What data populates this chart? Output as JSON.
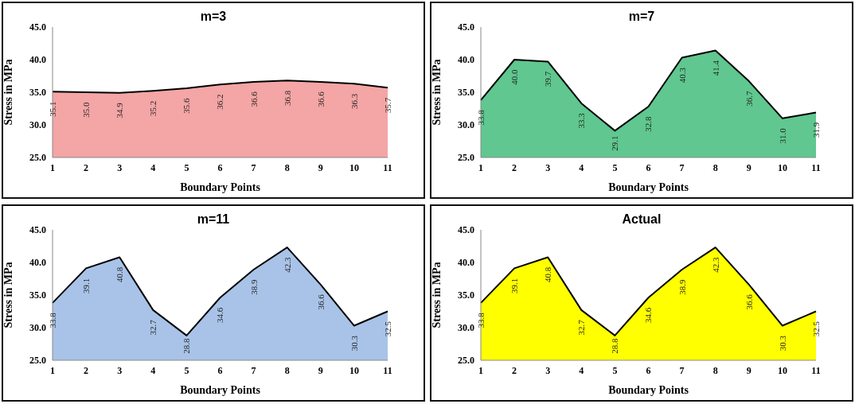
{
  "chart_data": [
    {
      "type": "area",
      "title": "m=3",
      "xlabel": "Boundary Points",
      "ylabel": "Stress  in  MPa",
      "categories": [
        "1",
        "2",
        "3",
        "4",
        "5",
        "6",
        "7",
        "8",
        "9",
        "10",
        "11"
      ],
      "ylim": [
        25,
        45
      ],
      "yticks": [
        {
          "value": 25,
          "label": "25.0"
        },
        {
          "value": 30,
          "label": "30.0"
        },
        {
          "value": 35,
          "label": "35.0"
        },
        {
          "value": 40,
          "label": "40.0"
        },
        {
          "value": 45,
          "label": "45.0"
        }
      ],
      "grid": false,
      "series": [
        {
          "color": "#f4a5a5",
          "values": [
            35.1,
            35.0,
            34.9,
            35.2,
            35.6,
            36.2,
            36.6,
            36.8,
            36.6,
            36.3,
            35.7
          ],
          "value_labels": [
            "35.1",
            "35.0",
            "34.9",
            "35.2",
            "35.6",
            "36.2",
            "36.6",
            "36.8",
            "36.6",
            "36.3",
            "35.7"
          ]
        }
      ]
    },
    {
      "type": "area",
      "title": "m=7",
      "xlabel": "Boundary Points",
      "ylabel": "Stress  in  MPa",
      "categories": [
        "1",
        "2",
        "3",
        "4",
        "5",
        "6",
        "7",
        "8",
        "9",
        "10",
        "11"
      ],
      "ylim": [
        25,
        45
      ],
      "yticks": [
        {
          "value": 25,
          "label": "25.0"
        },
        {
          "value": 30,
          "label": "30.0"
        },
        {
          "value": 35,
          "label": "35.0"
        },
        {
          "value": 40,
          "label": "40.0"
        },
        {
          "value": 45,
          "label": "45.0"
        }
      ],
      "grid": false,
      "series": [
        {
          "color": "#5fc78f",
          "values": [
            33.8,
            40.0,
            39.7,
            33.3,
            29.1,
            32.8,
            40.3,
            41.4,
            36.7,
            31.0,
            31.9
          ],
          "value_labels": [
            "33.8",
            "40.0",
            "39.7",
            "33.3",
            "29.1",
            "32.8",
            "40.3",
            "41.4",
            "36.7",
            "31.0",
            "31.9"
          ]
        }
      ]
    },
    {
      "type": "area",
      "title": "m=11",
      "xlabel": "Boundary Points",
      "ylabel": "Stress  in  MPa",
      "categories": [
        "1",
        "2",
        "3",
        "4",
        "5",
        "6",
        "7",
        "8",
        "9",
        "10",
        "11"
      ],
      "ylim": [
        25,
        45
      ],
      "yticks": [
        {
          "value": 25,
          "label": "25.0"
        },
        {
          "value": 30,
          "label": "30.0"
        },
        {
          "value": 35,
          "label": "35.0"
        },
        {
          "value": 40,
          "label": "40.0"
        },
        {
          "value": 45,
          "label": "45.0"
        }
      ],
      "grid": false,
      "series": [
        {
          "color": "#a9c3e8",
          "values": [
            33.8,
            39.1,
            40.8,
            32.7,
            28.8,
            34.6,
            38.9,
            42.3,
            36.6,
            30.3,
            32.5
          ],
          "value_labels": [
            "33.8",
            "39.1",
            "40.8",
            "32.7",
            "28.8",
            "34.6",
            "38.9",
            "42.3",
            "36.6",
            "30.3",
            "32.5"
          ]
        }
      ]
    },
    {
      "type": "area",
      "title": "Actual",
      "xlabel": "Boundary Points",
      "ylabel": "Stress  in  MPa",
      "categories": [
        "1",
        "2",
        "3",
        "4",
        "5",
        "6",
        "7",
        "8",
        "9",
        "10",
        "11"
      ],
      "ylim": [
        25,
        45
      ],
      "yticks": [
        {
          "value": 25,
          "label": "25.0"
        },
        {
          "value": 30,
          "label": "30.0"
        },
        {
          "value": 35,
          "label": "35.0"
        },
        {
          "value": 40,
          "label": "40.0"
        },
        {
          "value": 45,
          "label": "45.0"
        }
      ],
      "grid": false,
      "series": [
        {
          "color": "#ffff00",
          "values": [
            33.8,
            39.1,
            40.8,
            32.7,
            28.8,
            34.6,
            38.9,
            42.3,
            36.6,
            30.3,
            32.5
          ],
          "value_labels": [
            "33.8",
            "39.1",
            "40.8",
            "32.7",
            "28.8",
            "34.6",
            "38.9",
            "42.3",
            "36.6",
            "30.3",
            "32.5"
          ]
        }
      ]
    }
  ]
}
